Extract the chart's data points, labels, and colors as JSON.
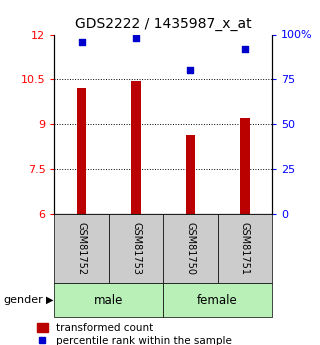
{
  "title": "GDS2222 / 1435987_x_at",
  "samples": [
    "GSM81752",
    "GSM81753",
    "GSM81750",
    "GSM81751"
  ],
  "transformed_counts": [
    10.2,
    10.45,
    8.65,
    9.2
  ],
  "percentile_ranks": [
    96,
    98,
    80,
    92
  ],
  "ylim_left": [
    6,
    12
  ],
  "ylim_right": [
    0,
    100
  ],
  "yticks_left": [
    6,
    7.5,
    9,
    10.5,
    12
  ],
  "yticks_right": [
    0,
    25,
    50,
    75,
    100
  ],
  "ytick_labels_right": [
    "0",
    "25",
    "50",
    "75",
    "100%"
  ],
  "bar_color": "#bb0000",
  "dot_color": "#0000cc",
  "bar_width": 0.18,
  "grid_lines": [
    7.5,
    9,
    10.5
  ],
  "background_color": "#ffffff",
  "label_box_color": "#cccccc",
  "gender_label": "gender",
  "group_color": "#b8f0b8",
  "legend_bar_label": "transformed count",
  "legend_dot_label": "percentile rank within the sample"
}
